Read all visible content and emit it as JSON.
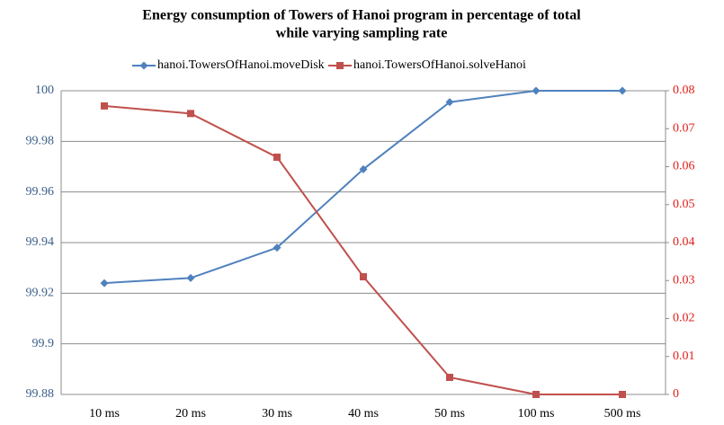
{
  "chart_data": {
    "type": "line",
    "title": [
      "Energy consumption of Towers of Hanoi program in percentage of total",
      "while varying sampling rate"
    ],
    "categories": [
      "10 ms",
      "20 ms",
      "30 ms",
      "40 ms",
      "50 ms",
      "100 ms",
      "500 ms"
    ],
    "series": [
      {
        "name": "hanoi.TowersOfHanoi.moveDisk",
        "color": "#4f81bd",
        "marker": "diamond",
        "values": [
          99.924,
          99.926,
          99.938,
          99.969,
          99.9955,
          100,
          100
        ]
      },
      {
        "name": "hanoi.TowersOfHanoi.solveHanoi",
        "color": "#c0504d",
        "marker": "square",
        "axis": "y2",
        "values": [
          0.076,
          0.074,
          0.0625,
          0.031,
          0.0045,
          0,
          0
        ]
      }
    ],
    "ylim": [
      99.88,
      100
    ],
    "yticks": [
      99.88,
      99.9,
      99.92,
      99.94,
      99.96,
      99.98,
      100
    ],
    "y2lim": [
      0,
      0.08
    ],
    "y2ticks": [
      0,
      0.01,
      0.02,
      0.03,
      0.04,
      0.05,
      0.06,
      0.07,
      0.08
    ],
    "grid": true,
    "legend": "top"
  }
}
